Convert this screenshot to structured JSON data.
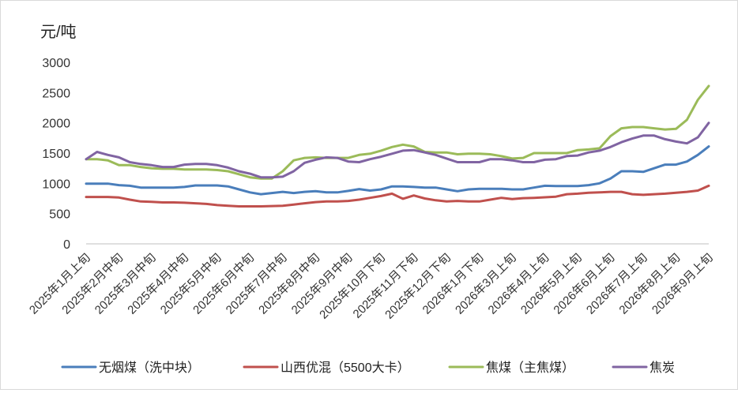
{
  "chart_data": {
    "type": "line",
    "title": "",
    "ylabel": "元/吨",
    "xlabel": "",
    "ylim": [
      0,
      3000
    ],
    "yticks": [
      0,
      500,
      1000,
      1500,
      2000,
      2500,
      3000
    ],
    "grid": false,
    "legend_position": "bottom",
    "xtick_labels": [
      "2025年1月上旬",
      "2025年2月中旬",
      "2025年3月中旬",
      "2025年4月中旬",
      "2025年5月中旬",
      "2025年6月中旬",
      "2025年7月中旬",
      "2025年8月中旬",
      "2025年9月中旬",
      "2025年10月下旬",
      "2025年11月下旬",
      "2025年12月下旬",
      "2026年1月下旬",
      "2026年3月上旬",
      "2026年4月上旬",
      "2026年5月上旬",
      "2026年6月上旬",
      "2026年7月上旬",
      "2026年8月上旬",
      "2026年9月上旬"
    ],
    "series": [
      {
        "name": "无烟煤（洗中块）",
        "color": "#4a7ebb",
        "values": [
          995,
          995,
          995,
          970,
          960,
          930,
          930,
          930,
          930,
          940,
          965,
          965,
          965,
          950,
          900,
          850,
          820,
          840,
          860,
          840,
          860,
          870,
          850,
          850,
          875,
          905,
          880,
          900,
          950,
          950,
          940,
          930,
          930,
          900,
          870,
          900,
          910,
          910,
          910,
          900,
          900,
          930,
          960,
          955,
          955,
          955,
          970,
          1000,
          1080,
          1200,
          1200,
          1190,
          1250,
          1310,
          1310,
          1360,
          1470,
          1610
        ]
      },
      {
        "name": "山西优混（5500大卡）",
        "color": "#c0504d",
        "values": [
          775,
          775,
          775,
          765,
          730,
          700,
          695,
          685,
          685,
          680,
          670,
          660,
          640,
          630,
          620,
          620,
          620,
          625,
          630,
          650,
          670,
          690,
          700,
          700,
          710,
          730,
          760,
          790,
          830,
          745,
          800,
          750,
          720,
          700,
          710,
          700,
          700,
          730,
          760,
          740,
          755,
          760,
          770,
          780,
          820,
          830,
          845,
          850,
          860,
          860,
          820,
          810,
          820,
          830,
          845,
          860,
          880,
          960
        ]
      },
      {
        "name": "焦煤（主焦煤）",
        "color": "#9bbb59",
        "values": [
          1400,
          1400,
          1380,
          1300,
          1300,
          1270,
          1250,
          1240,
          1240,
          1230,
          1230,
          1230,
          1220,
          1200,
          1150,
          1100,
          1080,
          1080,
          1200,
          1380,
          1420,
          1430,
          1420,
          1420,
          1420,
          1470,
          1490,
          1540,
          1600,
          1640,
          1610,
          1520,
          1510,
          1510,
          1480,
          1490,
          1490,
          1480,
          1450,
          1410,
          1420,
          1500,
          1500,
          1500,
          1500,
          1550,
          1560,
          1580,
          1780,
          1910,
          1930,
          1930,
          1910,
          1890,
          1900,
          2050,
          2380,
          2610
        ]
      },
      {
        "name": "焦炭",
        "color": "#8064a2",
        "values": [
          1400,
          1520,
          1470,
          1430,
          1350,
          1320,
          1300,
          1270,
          1270,
          1310,
          1320,
          1320,
          1300,
          1260,
          1200,
          1160,
          1100,
          1100,
          1110,
          1200,
          1340,
          1390,
          1430,
          1420,
          1360,
          1350,
          1400,
          1440,
          1490,
          1540,
          1550,
          1510,
          1470,
          1410,
          1350,
          1350,
          1350,
          1400,
          1400,
          1380,
          1350,
          1350,
          1390,
          1400,
          1450,
          1460,
          1510,
          1540,
          1600,
          1680,
          1740,
          1790,
          1790,
          1730,
          1690,
          1660,
          1760,
          2000
        ]
      }
    ]
  }
}
